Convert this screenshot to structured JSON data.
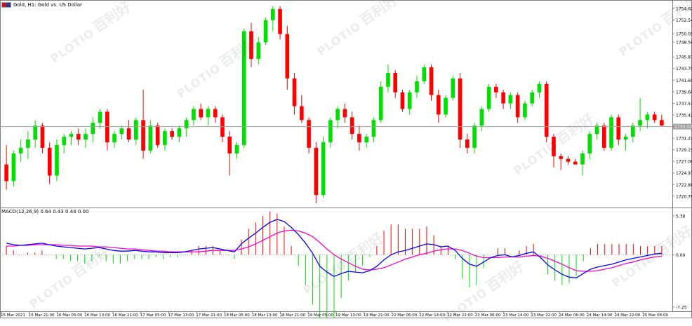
{
  "header": {
    "title": "Gold, H1:  Gold vs. US Dollar"
  },
  "macd_header": {
    "label": "MACD(12,26,9) 0.64 0.43 0.44 0.00"
  },
  "watermark": {
    "brand": "PLOTIO",
    "cn": "百利好"
  },
  "colors": {
    "bull": "#00e000",
    "bear": "#ff0000",
    "price_line": "#a0a0a0",
    "macd_line": "#0000ff",
    "signal_line": "#ff00c8",
    "hist_pos": "#ff0000",
    "hist_neg": "#00e000",
    "price_tag_bg": "#a0a0a0"
  },
  "chart_data": [
    {
      "type": "candlestick",
      "title": "Gold, H1:  Gold vs. US Dollar",
      "ylim": [
        1719.0,
        1755.5
      ],
      "y_ticks": [
        "1754.62",
        "1752.54",
        "1750.05",
        "1748.56",
        "1745.87",
        "1743.79",
        "1741.69",
        "1739.60",
        "1737.51",
        "1735.42",
        "1733.32",
        "1731.24",
        "1729.15",
        "1727.06",
        "1724.97",
        "1722.88",
        "1720.79"
      ],
      "current_price": "1733.32",
      "x_ticks": [
        "15 Mar 2021",
        "15 Mar 21:00",
        "16 Mar 05:00",
        "16 Mar 13:00",
        "16 Mar 21:00",
        "17 Mar 05:00",
        "17 Mar 13:00",
        "17 Mar 21:00",
        "18 Mar 05:00",
        "18 Mar 13:00",
        "18 Mar 21:00",
        "19 Mar 05:00",
        "19 Mar 13:00",
        "19 Mar 21:00",
        "22 Mar 06:00",
        "22 Mar 14:00",
        "22 Mar 22:00",
        "23 Mar 06:00",
        "23 Mar 14:00",
        "23 Mar 22:00",
        "24 Mar 06:00",
        "24 Mar 14:00",
        "24 Mar 22:00",
        "25 Mar 06:00"
      ],
      "candles": [
        {
          "o": 1726.5,
          "h": 1730.0,
          "l": 1722.0,
          "c": 1723.5
        },
        {
          "o": 1723.5,
          "h": 1729.0,
          "l": 1722.5,
          "c": 1728.5
        },
        {
          "o": 1728.5,
          "h": 1731.0,
          "l": 1727.0,
          "c": 1729.5
        },
        {
          "o": 1729.5,
          "h": 1732.5,
          "l": 1727.5,
          "c": 1731.0
        },
        {
          "o": 1731.0,
          "h": 1734.5,
          "l": 1729.5,
          "c": 1733.5
        },
        {
          "o": 1733.5,
          "h": 1734.0,
          "l": 1728.5,
          "c": 1729.5
        },
        {
          "o": 1729.5,
          "h": 1730.5,
          "l": 1723.0,
          "c": 1724.5
        },
        {
          "o": 1724.5,
          "h": 1731.0,
          "l": 1723.5,
          "c": 1730.0
        },
        {
          "o": 1730.0,
          "h": 1732.0,
          "l": 1728.5,
          "c": 1731.5
        },
        {
          "o": 1731.5,
          "h": 1732.5,
          "l": 1730.0,
          "c": 1732.0
        },
        {
          "o": 1732.0,
          "h": 1733.0,
          "l": 1730.0,
          "c": 1731.0
        },
        {
          "o": 1731.0,
          "h": 1733.0,
          "l": 1729.5,
          "c": 1732.0
        },
        {
          "o": 1732.0,
          "h": 1735.0,
          "l": 1730.5,
          "c": 1734.0
        },
        {
          "o": 1734.0,
          "h": 1736.5,
          "l": 1733.0,
          "c": 1736.0
        },
        {
          "o": 1736.0,
          "h": 1736.5,
          "l": 1729.0,
          "c": 1730.5
        },
        {
          "o": 1730.5,
          "h": 1732.5,
          "l": 1729.5,
          "c": 1732.0
        },
        {
          "o": 1732.0,
          "h": 1733.5,
          "l": 1731.0,
          "c": 1733.0
        },
        {
          "o": 1733.0,
          "h": 1734.5,
          "l": 1730.5,
          "c": 1731.0
        },
        {
          "o": 1731.0,
          "h": 1735.0,
          "l": 1730.0,
          "c": 1734.5
        },
        {
          "o": 1734.5,
          "h": 1740.0,
          "l": 1727.5,
          "c": 1729.0
        },
        {
          "o": 1729.0,
          "h": 1734.5,
          "l": 1728.5,
          "c": 1733.5
        },
        {
          "o": 1733.5,
          "h": 1734.0,
          "l": 1729.5,
          "c": 1730.0
        },
        {
          "o": 1730.0,
          "h": 1733.0,
          "l": 1729.0,
          "c": 1732.5
        },
        {
          "o": 1732.5,
          "h": 1733.0,
          "l": 1731.0,
          "c": 1731.5
        },
        {
          "o": 1731.5,
          "h": 1733.5,
          "l": 1730.5,
          "c": 1733.0
        },
        {
          "o": 1733.0,
          "h": 1735.0,
          "l": 1731.5,
          "c": 1734.5
        },
        {
          "o": 1734.5,
          "h": 1737.0,
          "l": 1733.5,
          "c": 1736.5
        },
        {
          "o": 1736.5,
          "h": 1737.5,
          "l": 1734.5,
          "c": 1735.0
        },
        {
          "o": 1735.0,
          "h": 1737.0,
          "l": 1733.5,
          "c": 1736.5
        },
        {
          "o": 1736.5,
          "h": 1737.0,
          "l": 1734.0,
          "c": 1735.0
        },
        {
          "o": 1735.0,
          "h": 1735.5,
          "l": 1730.5,
          "c": 1731.5
        },
        {
          "o": 1731.5,
          "h": 1732.5,
          "l": 1724.5,
          "c": 1728.5
        },
        {
          "o": 1728.5,
          "h": 1730.5,
          "l": 1727.5,
          "c": 1730.0
        },
        {
          "o": 1730.0,
          "h": 1751.0,
          "l": 1729.5,
          "c": 1750.5
        },
        {
          "o": 1750.5,
          "h": 1752.0,
          "l": 1744.0,
          "c": 1745.5
        },
        {
          "o": 1745.5,
          "h": 1749.5,
          "l": 1744.5,
          "c": 1748.5
        },
        {
          "o": 1748.5,
          "h": 1753.0,
          "l": 1748.0,
          "c": 1752.5
        },
        {
          "o": 1752.5,
          "h": 1755.0,
          "l": 1750.5,
          "c": 1754.5
        },
        {
          "o": 1754.5,
          "h": 1755.0,
          "l": 1749.0,
          "c": 1750.0
        },
        {
          "o": 1750.0,
          "h": 1751.5,
          "l": 1740.0,
          "c": 1742.0
        },
        {
          "o": 1742.0,
          "h": 1743.0,
          "l": 1735.5,
          "c": 1737.0
        },
        {
          "o": 1737.0,
          "h": 1739.0,
          "l": 1734.0,
          "c": 1734.5
        },
        {
          "o": 1734.5,
          "h": 1735.0,
          "l": 1728.5,
          "c": 1729.5
        },
        {
          "o": 1729.5,
          "h": 1730.5,
          "l": 1719.5,
          "c": 1721.0
        },
        {
          "o": 1721.0,
          "h": 1731.5,
          "l": 1720.5,
          "c": 1730.5
        },
        {
          "o": 1730.5,
          "h": 1735.0,
          "l": 1729.5,
          "c": 1734.5
        },
        {
          "o": 1734.5,
          "h": 1737.0,
          "l": 1733.0,
          "c": 1736.5
        },
        {
          "o": 1736.5,
          "h": 1737.5,
          "l": 1734.0,
          "c": 1735.0
        },
        {
          "o": 1735.0,
          "h": 1736.0,
          "l": 1731.0,
          "c": 1732.0
        },
        {
          "o": 1732.0,
          "h": 1733.5,
          "l": 1729.0,
          "c": 1730.5
        },
        {
          "o": 1730.5,
          "h": 1732.0,
          "l": 1729.5,
          "c": 1731.5
        },
        {
          "o": 1731.5,
          "h": 1735.0,
          "l": 1730.5,
          "c": 1734.5
        },
        {
          "o": 1734.5,
          "h": 1741.5,
          "l": 1734.0,
          "c": 1740.5
        },
        {
          "o": 1740.5,
          "h": 1744.5,
          "l": 1739.5,
          "c": 1743.0
        },
        {
          "o": 1743.0,
          "h": 1743.5,
          "l": 1738.5,
          "c": 1739.5
        },
        {
          "o": 1739.5,
          "h": 1740.0,
          "l": 1736.0,
          "c": 1736.5
        },
        {
          "o": 1736.5,
          "h": 1740.0,
          "l": 1735.5,
          "c": 1739.5
        },
        {
          "o": 1739.5,
          "h": 1742.5,
          "l": 1738.5,
          "c": 1741.5
        },
        {
          "o": 1741.5,
          "h": 1744.5,
          "l": 1741.0,
          "c": 1744.0
        },
        {
          "o": 1744.0,
          "h": 1744.5,
          "l": 1738.0,
          "c": 1739.0
        },
        {
          "o": 1739.0,
          "h": 1740.0,
          "l": 1734.0,
          "c": 1735.5
        },
        {
          "o": 1735.5,
          "h": 1739.0,
          "l": 1735.0,
          "c": 1738.5
        },
        {
          "o": 1738.5,
          "h": 1742.5,
          "l": 1738.0,
          "c": 1742.0
        },
        {
          "o": 1742.0,
          "h": 1743.0,
          "l": 1729.5,
          "c": 1731.0
        },
        {
          "o": 1731.0,
          "h": 1732.0,
          "l": 1728.5,
          "c": 1729.5
        },
        {
          "o": 1729.5,
          "h": 1734.0,
          "l": 1728.5,
          "c": 1733.5
        },
        {
          "o": 1733.5,
          "h": 1737.0,
          "l": 1732.5,
          "c": 1736.5
        },
        {
          "o": 1736.5,
          "h": 1741.0,
          "l": 1736.0,
          "c": 1740.5
        },
        {
          "o": 1740.5,
          "h": 1741.0,
          "l": 1738.5,
          "c": 1739.5
        },
        {
          "o": 1739.5,
          "h": 1740.0,
          "l": 1736.5,
          "c": 1737.5
        },
        {
          "o": 1737.5,
          "h": 1739.5,
          "l": 1736.5,
          "c": 1739.0
        },
        {
          "o": 1739.0,
          "h": 1739.5,
          "l": 1734.0,
          "c": 1735.0
        },
        {
          "o": 1735.0,
          "h": 1738.0,
          "l": 1734.5,
          "c": 1737.5
        },
        {
          "o": 1737.5,
          "h": 1740.0,
          "l": 1737.0,
          "c": 1739.5
        },
        {
          "o": 1739.5,
          "h": 1741.5,
          "l": 1738.5,
          "c": 1741.0
        },
        {
          "o": 1741.0,
          "h": 1741.5,
          "l": 1730.5,
          "c": 1731.5
        },
        {
          "o": 1731.5,
          "h": 1732.0,
          "l": 1726.0,
          "c": 1728.0
        },
        {
          "o": 1728.0,
          "h": 1728.5,
          "l": 1725.5,
          "c": 1727.5
        },
        {
          "o": 1727.5,
          "h": 1728.0,
          "l": 1726.5,
          "c": 1727.0
        },
        {
          "o": 1727.0,
          "h": 1727.5,
          "l": 1726.5,
          "c": 1726.5
        },
        {
          "o": 1726.5,
          "h": 1729.0,
          "l": 1724.5,
          "c": 1728.5
        },
        {
          "o": 1728.5,
          "h": 1732.5,
          "l": 1727.5,
          "c": 1732.0
        },
        {
          "o": 1732.0,
          "h": 1734.0,
          "l": 1731.0,
          "c": 1733.5
        },
        {
          "o": 1733.5,
          "h": 1734.0,
          "l": 1729.0,
          "c": 1729.5
        },
        {
          "o": 1729.5,
          "h": 1735.5,
          "l": 1729.0,
          "c": 1735.0
        },
        {
          "o": 1735.0,
          "h": 1735.5,
          "l": 1730.0,
          "c": 1731.0
        },
        {
          "o": 1731.0,
          "h": 1732.0,
          "l": 1729.0,
          "c": 1731.5
        },
        {
          "o": 1731.5,
          "h": 1734.0,
          "l": 1730.5,
          "c": 1733.5
        },
        {
          "o": 1733.5,
          "h": 1738.5,
          "l": 1732.5,
          "c": 1734.5
        },
        {
          "o": 1734.5,
          "h": 1736.0,
          "l": 1733.0,
          "c": 1735.5
        },
        {
          "o": 1735.5,
          "h": 1736.0,
          "l": 1734.0,
          "c": 1734.5
        },
        {
          "o": 1734.5,
          "h": 1735.5,
          "l": 1733.5,
          "c": 1733.5
        }
      ]
    },
    {
      "type": "macd",
      "label": "MACD(12,26,9) 0.64 0.43 0.44 0.00",
      "ylim": [
        -7.25,
        5.38
      ],
      "y_ticks": [
        "5.38",
        "0.00",
        "-7.25"
      ],
      "macd": [
        1.6,
        1.4,
        1.3,
        1.4,
        1.5,
        1.6,
        1.4,
        1.2,
        1.1,
        1.0,
        0.9,
        0.8,
        0.9,
        1.0,
        0.8,
        0.6,
        0.5,
        0.5,
        0.6,
        0.5,
        0.4,
        0.4,
        0.3,
        0.3,
        0.3,
        0.4,
        0.6,
        0.8,
        0.9,
        1.0,
        0.8,
        0.6,
        0.4,
        1.5,
        2.3,
        3.0,
        3.8,
        4.5,
        4.9,
        4.6,
        3.8,
        2.8,
        1.6,
        0.2,
        -1.6,
        -2.4,
        -3.0,
        -2.6,
        -2.3,
        -2.4,
        -2.5,
        -2.2,
        -1.6,
        -0.7,
        0.0,
        0.4,
        0.6,
        0.9,
        1.2,
        1.5,
        1.4,
        1.1,
        1.2,
        0.6,
        -0.5,
        -1.3,
        -1.6,
        -1.0,
        -0.4,
        -0.1,
        0.0,
        -0.3,
        -0.1,
        0.2,
        0.4,
        -0.4,
        -1.4,
        -2.1,
        -2.7,
        -3.1,
        -3.2,
        -2.6,
        -2.0,
        -1.7,
        -1.5,
        -1.3,
        -1.0,
        -0.7,
        -0.5,
        -0.3,
        -0.1,
        0.1,
        0.2
      ],
      "signal": [
        1.2,
        1.2,
        1.3,
        1.3,
        1.4,
        1.4,
        1.4,
        1.4,
        1.3,
        1.3,
        1.2,
        1.2,
        1.2,
        1.1,
        1.1,
        1.0,
        0.9,
        0.8,
        0.8,
        0.7,
        0.6,
        0.5,
        0.5,
        0.4,
        0.4,
        0.4,
        0.4,
        0.4,
        0.5,
        0.6,
        0.6,
        0.6,
        0.6,
        0.8,
        1.1,
        1.5,
        2.0,
        2.5,
        3.0,
        3.3,
        3.4,
        3.3,
        3.0,
        2.5,
        1.7,
        0.8,
        0.0,
        -0.6,
        -1.1,
        -1.6,
        -2.0,
        -2.1,
        -2.0,
        -1.8,
        -1.4,
        -1.0,
        -0.6,
        -0.3,
        0.0,
        0.2,
        0.5,
        0.7,
        0.8,
        0.8,
        0.6,
        0.2,
        -0.2,
        -0.4,
        -0.4,
        -0.4,
        -0.3,
        -0.3,
        -0.3,
        -0.2,
        -0.1,
        -0.2,
        -0.5,
        -0.9,
        -1.3,
        -1.8,
        -2.2,
        -2.3,
        -2.3,
        -2.2,
        -2.0,
        -1.8,
        -1.5,
        -1.2,
        -1.0,
        -0.7,
        -0.5,
        -0.3,
        -0.2
      ]
    }
  ]
}
